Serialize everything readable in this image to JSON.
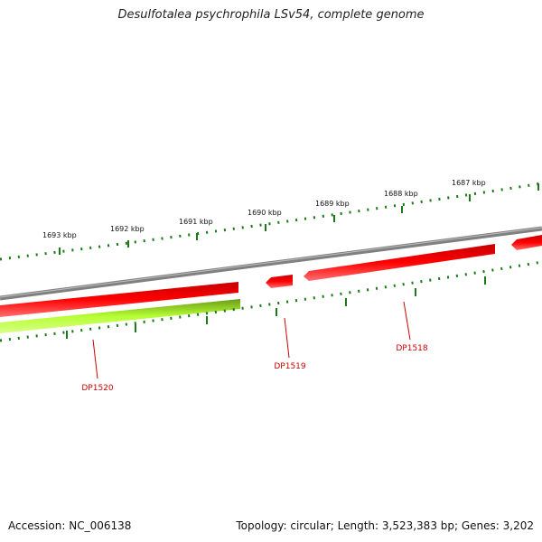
{
  "title": "Desulfotalea psychrophila LSv54, complete genome",
  "accession": "Accession: NC_006138",
  "summary": "Topology: circular; Length: 3,523,383 bp; Genes: 3,202",
  "ticks": [
    {
      "label": "1693 kbp"
    },
    {
      "label": "1692 kbp"
    },
    {
      "label": "1691 kbp"
    },
    {
      "label": "1690 kbp"
    },
    {
      "label": "1689 kbp"
    },
    {
      "label": "1688 kbp"
    },
    {
      "label": "1687 kbp"
    }
  ],
  "genes": [
    {
      "label": "DP1520"
    },
    {
      "label": "DP1519"
    },
    {
      "label": "DP1518"
    }
  ],
  "colors": {
    "gene_forward": "#ff0000",
    "gene_feature": "#b6ff33",
    "backbone": "#808080",
    "tick": "#1a7a1a",
    "gene_label": "#cc0000"
  }
}
